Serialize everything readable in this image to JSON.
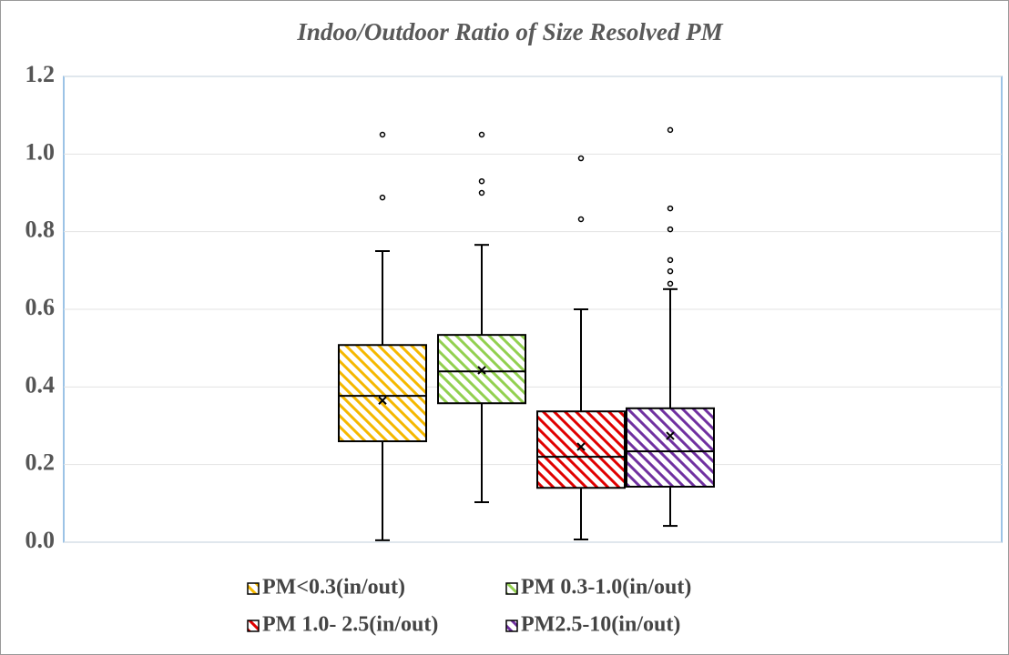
{
  "chart_data": {
    "type": "box",
    "title": "Indoo/Outdoor Ratio of Size Resolved PM",
    "ylim": [
      0,
      1.2
    ],
    "yticks": [
      {
        "value": 0,
        "label": "0.0"
      },
      0.2,
      0.4,
      0.6,
      0.8,
      {
        "value": 1,
        "label": "1.0"
      },
      1.2
    ],
    "grid": true,
    "series": [
      {
        "name": "PM<0.3(in/out)",
        "color": "#f5b800",
        "min": 0.005,
        "q1": 0.26,
        "median": 0.377,
        "q3": 0.508,
        "max": 0.75,
        "mean": 0.365,
        "outliers": [
          1.05,
          0.888
        ]
      },
      {
        "name": "PM 0.3-1.0(in/out)",
        "color": "#92d050",
        "min": 0.103,
        "q1": 0.358,
        "median": 0.44,
        "q3": 0.534,
        "max": 0.766,
        "mean": 0.443,
        "outliers": [
          1.05,
          0.93,
          0.9
        ]
      },
      {
        "name": "PM 1.0- 2.5(in/out)",
        "color": "#e00000",
        "min": 0.007,
        "q1": 0.14,
        "median": 0.22,
        "q3": 0.337,
        "max": 0.6,
        "mean": 0.246,
        "outliers": [
          0.989,
          0.832
        ]
      },
      {
        "name": "PM2.5-10(in/out)",
        "color": "#7030a0",
        "min": 0.042,
        "q1": 0.143,
        "median": 0.234,
        "q3": 0.345,
        "max": 0.652,
        "mean": 0.274,
        "outliers": [
          1.062,
          0.86,
          0.806,
          0.727,
          0.698,
          0.666
        ]
      }
    ]
  }
}
